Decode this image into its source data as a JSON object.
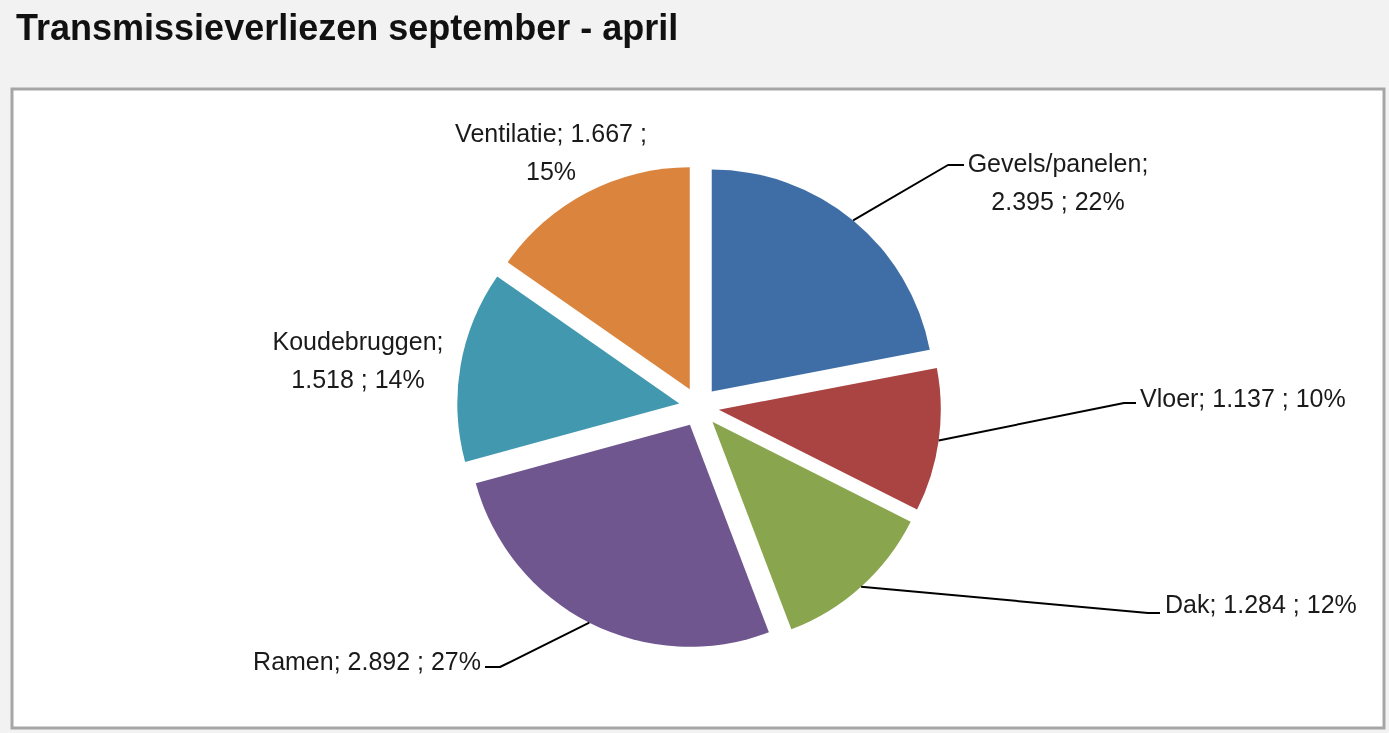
{
  "chart_data": {
    "type": "pie",
    "title": "Transmissieverliezen september - april",
    "categories": [
      "Gevels/panelen",
      "Vloer",
      "Dak",
      "Ramen",
      "Koudebruggen",
      "Ventilatie"
    ],
    "values": [
      2.395,
      1.137,
      1.284,
      2.892,
      1.518,
      1.667
    ],
    "value_labels": [
      "; 2.395 ; 22%",
      "; 1.137 ; 10%",
      "; 1.284 ; 12%",
      "; 2.892 ; 27%",
      "; 1.518 ; 14%",
      "; 1.667 ; 15%"
    ],
    "colors": [
      "#3f6ea6",
      "#a94442",
      "#89a54e",
      "#70568f",
      "#4198af",
      "#db843d"
    ]
  }
}
